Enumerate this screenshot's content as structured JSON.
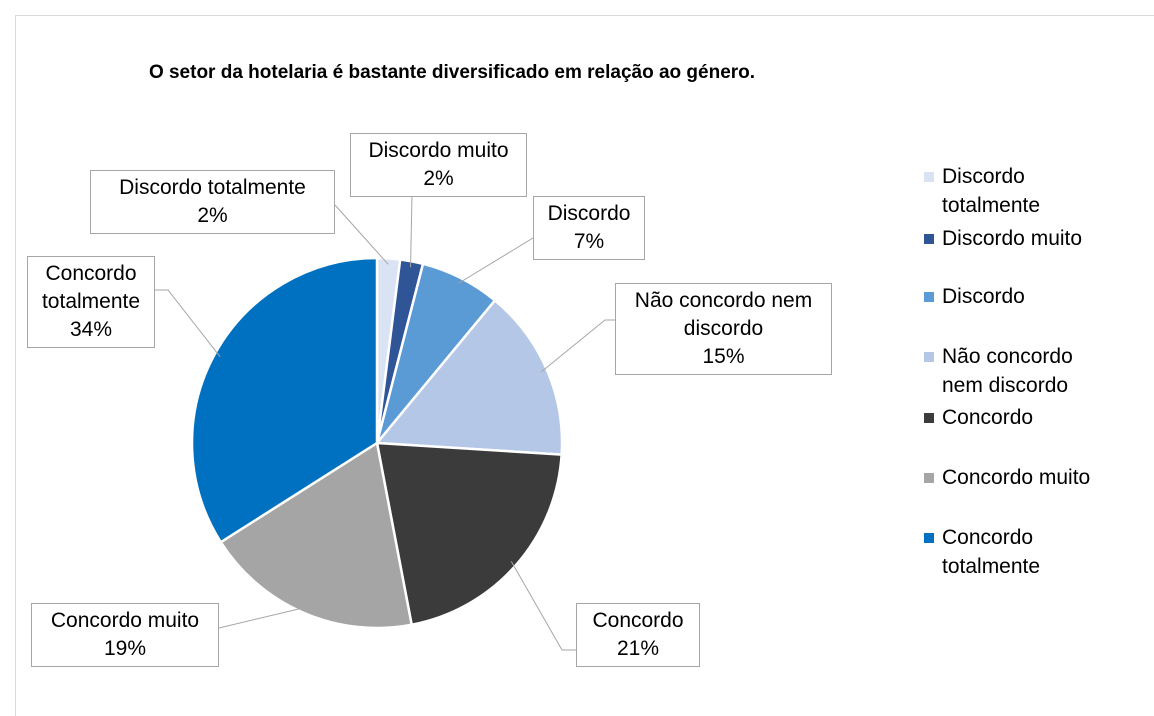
{
  "chart_data": {
    "type": "pie",
    "title": "O setor da hotelaria é bastante diversificado em relação ao género.",
    "categories": [
      "Discordo totalmente",
      "Discordo muito",
      "Discordo",
      "Não concordo nem discordo",
      "Concordo",
      "Concordo muito",
      "Concordo totalmente"
    ],
    "values": [
      2,
      2,
      7,
      15,
      21,
      19,
      34
    ],
    "value_labels": [
      "2%",
      "2%",
      "7%",
      "15%",
      "21%",
      "19%",
      "34%"
    ],
    "colors": [
      "#dae3f3",
      "#2f5597",
      "#5b9bd5",
      "#b4c7e7",
      "#3b3b3b",
      "#a5a5a5",
      "#0070c0"
    ],
    "legend": "right"
  }
}
